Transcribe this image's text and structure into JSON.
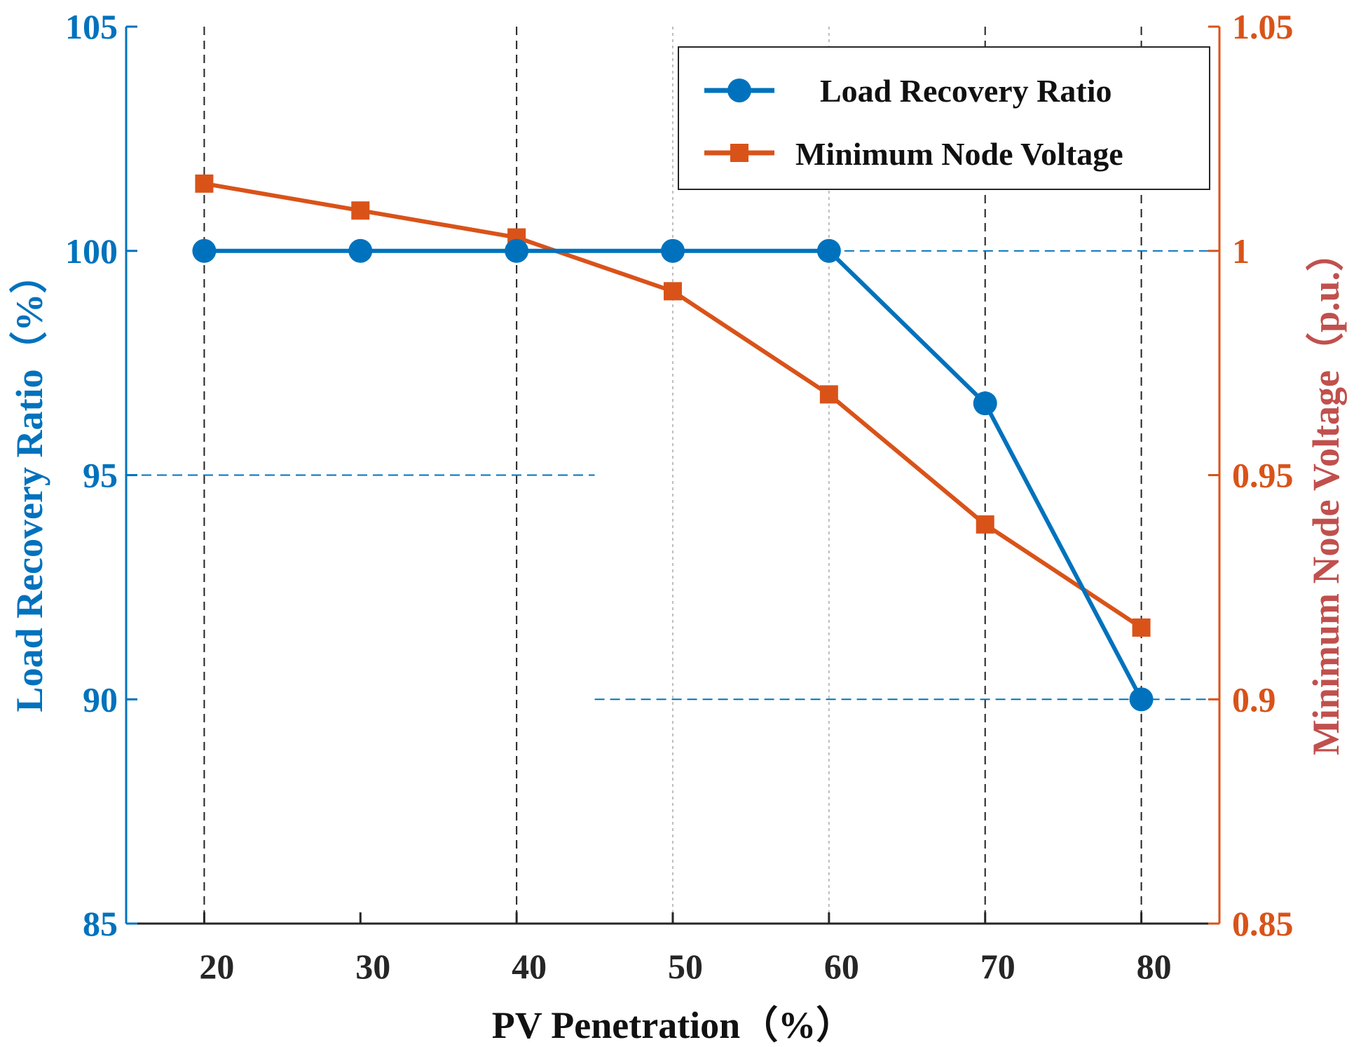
{
  "chart_data": {
    "type": "line",
    "x": [
      20,
      30,
      40,
      50,
      60,
      70,
      80
    ],
    "xlabel": "PV Penetration（%）",
    "xlim": [
      15,
      85
    ],
    "series": [
      {
        "name": "Load Recovery Ratio",
        "axis": "left",
        "marker": "circle",
        "color": "#0072BD",
        "values": [
          100,
          100,
          100,
          100,
          100,
          96.6,
          90
        ]
      },
      {
        "name": "Minimum Node Voltage",
        "axis": "right",
        "marker": "square",
        "color": "#D95319",
        "values": [
          1.015,
          1.009,
          1.003,
          0.991,
          0.968,
          0.939,
          0.916
        ]
      }
    ],
    "left_axis": {
      "label": "Load Recovery Ratio（%）",
      "ylim": [
        85,
        105
      ],
      "ticks": [
        85,
        90,
        95,
        100,
        105
      ],
      "tick_labels": [
        "85",
        "90",
        "95",
        "100",
        "105"
      ],
      "color": "#0072BD"
    },
    "right_axis": {
      "label": "Minimum Node Voltage（p.u.）",
      "ylim": [
        0.85,
        1.05
      ],
      "ticks": [
        0.85,
        0.9,
        0.95,
        1.0,
        1.05
      ],
      "tick_labels": [
        "0.85",
        "0.9",
        "0.95",
        "1",
        "1.05"
      ],
      "color": "#D95319",
      "label_color": "#C0504D"
    },
    "x_ticks": [
      20,
      30,
      40,
      50,
      60,
      70,
      80
    ],
    "x_tick_labels": [
      "20",
      "30",
      "40",
      "50",
      "60",
      "70",
      "80"
    ],
    "reference_lines": {
      "vertical_dashed_x": [
        20,
        40,
        70,
        80
      ],
      "vertical_dashed_light_x": [
        50,
        60
      ],
      "horizontal_dashed": [
        {
          "y": 100,
          "x_from": 60,
          "x_to": 85
        },
        {
          "y": 95,
          "x_from": 15,
          "x_to": 45
        },
        {
          "y": 90,
          "x_from": 45,
          "x_to": 85
        }
      ]
    },
    "legend": {
      "placement": "top-right",
      "entries": [
        "Load Recovery Ratio",
        "Minimum Node Voltage"
      ]
    },
    "grid": false
  }
}
